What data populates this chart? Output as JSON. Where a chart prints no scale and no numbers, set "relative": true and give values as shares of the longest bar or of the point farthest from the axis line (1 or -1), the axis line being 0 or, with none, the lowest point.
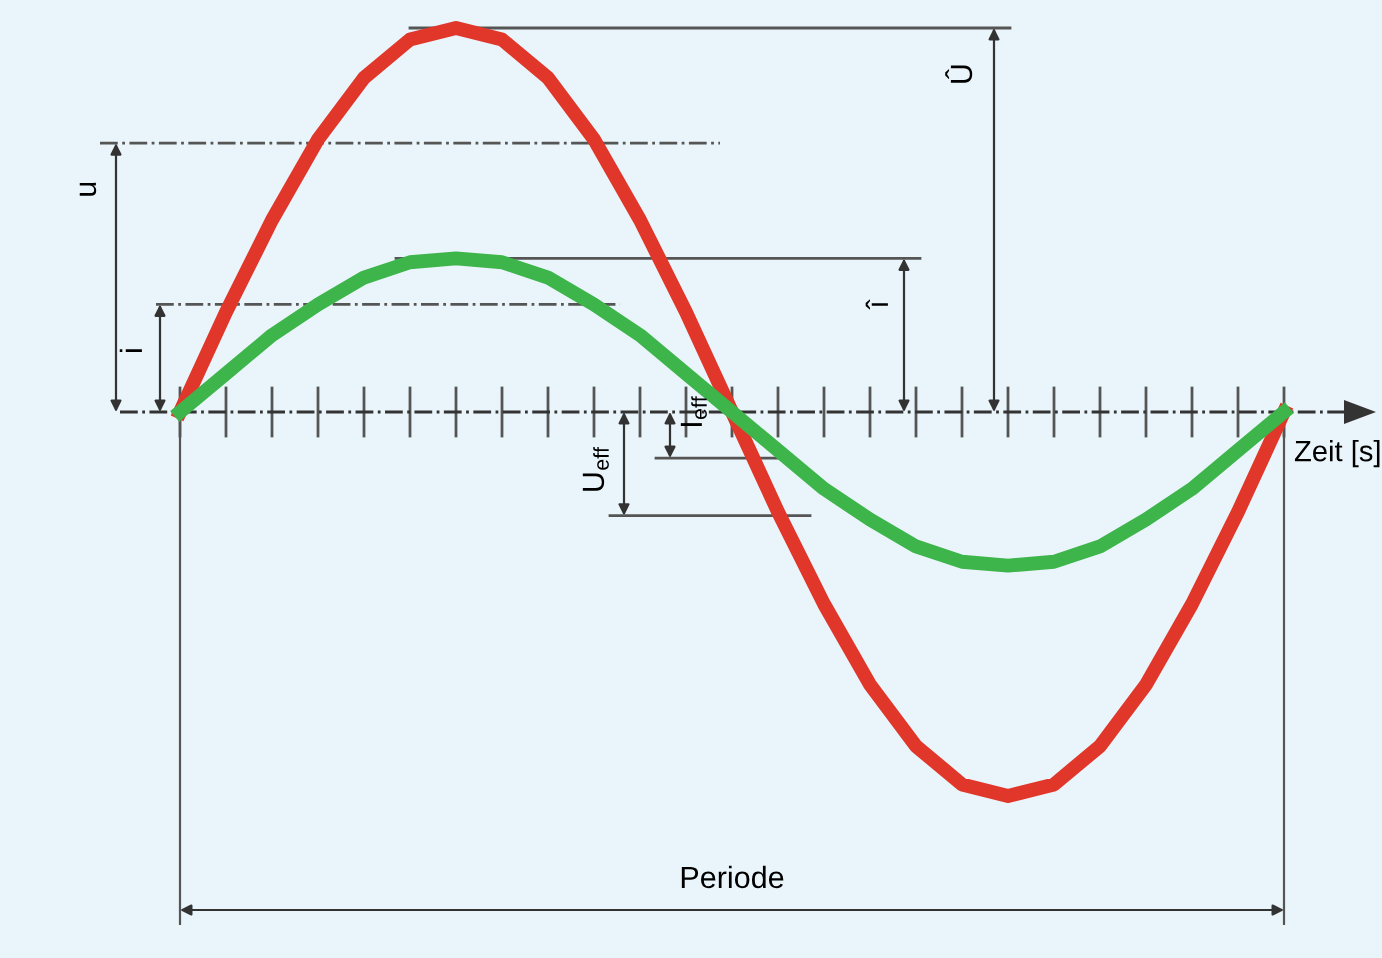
{
  "chart_data": {
    "type": "line",
    "relative": true,
    "xlabel": "Zeit [s]",
    "categories": [
      null,
      null,
      null,
      null,
      null,
      null,
      null,
      null,
      null,
      null,
      null,
      null,
      null,
      null,
      null,
      null,
      null,
      null,
      null,
      null,
      null,
      null,
      null,
      null,
      null
    ],
    "series": [
      {
        "color": "#e0372a",
        "values": [
          0,
          0.26,
          0.5,
          0.71,
          0.87,
          0.97,
          1,
          0.97,
          0.87,
          0.71,
          0.5,
          0.26,
          0,
          -0.26,
          -0.5,
          -0.71,
          -0.87,
          -0.97,
          -1,
          -0.97,
          -0.87,
          -0.71,
          -0.5,
          -0.26,
          0
        ]
      },
      {
        "color": "#3db54a",
        "values": [
          0,
          0.1,
          0.2,
          0.28,
          0.35,
          0.39,
          0.4,
          0.39,
          0.35,
          0.28,
          0.2,
          0.1,
          0,
          -0.1,
          -0.2,
          -0.28,
          -0.35,
          -0.39,
          -0.4,
          -0.39,
          -0.35,
          -0.28,
          -0.2,
          -0.1,
          0
        ]
      }
    ],
    "ref_lines": [
      {
        "axis": "y",
        "value": 0,
        "line_style": "dashed",
        "color": "#333333"
      },
      {
        "axis": "y",
        "value": 0.7,
        "label": "u",
        "line_style": "dashed"
      },
      {
        "axis": "y",
        "value": 0.28,
        "label": "i",
        "line_style": "dashed"
      },
      {
        "axis": "y",
        "value": 1,
        "label": "Û",
        "line_style": "solid"
      },
      {
        "axis": "y",
        "value": 0.4,
        "label": "î",
        "line_style": "solid"
      },
      {
        "axis": "y",
        "value": -0.27,
        "label": "U$_{eff}$",
        "line_style": "solid"
      },
      {
        "axis": "y",
        "value": -0.12,
        "label": "I$_{eff}$",
        "line_style": "solid"
      }
    ],
    "annotations": [
      "Periode"
    ],
    "marker": "none",
    "line_style": "solid"
  }
}
